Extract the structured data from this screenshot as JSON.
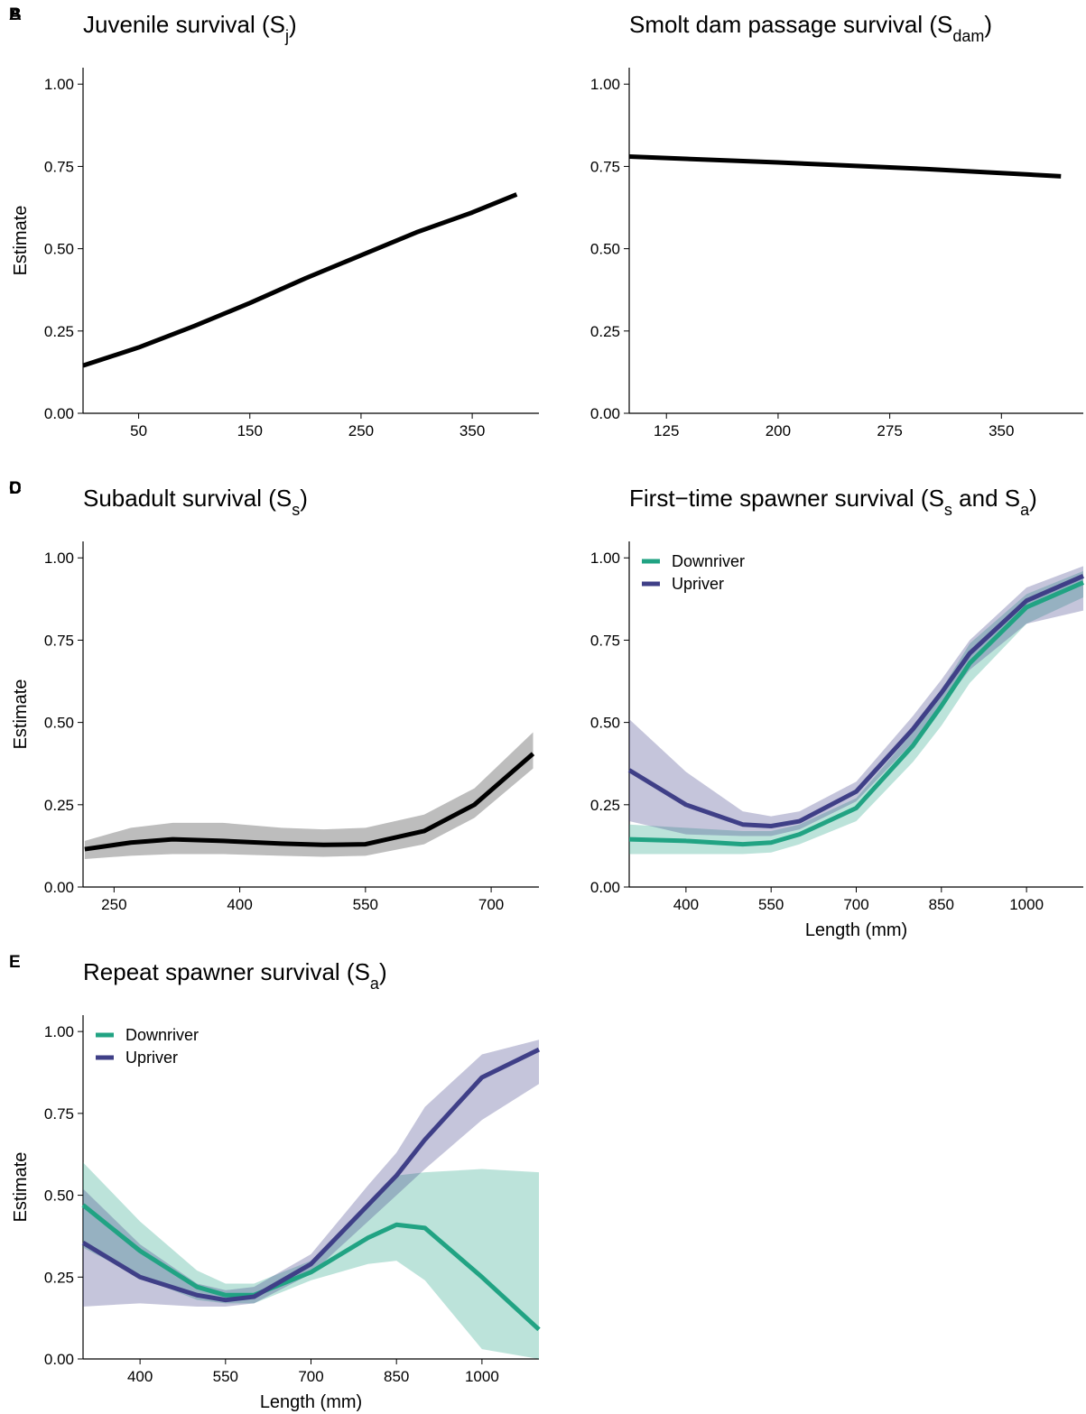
{
  "chart_data": [
    {
      "type": "line",
      "panel": "A",
      "title": [
        {
          "text": "Juvenile survival ("
        },
        {
          "text": "S"
        },
        {
          "text": "j",
          "sub": true
        },
        {
          "text": ")"
        }
      ],
      "ylabel": "Estimate",
      "xlim": [
        0,
        410
      ],
      "xticks": [
        50,
        150,
        250,
        350
      ],
      "ylim": [
        0,
        1.05
      ],
      "yticks": [
        {
          "value": 0,
          "label": "0.00"
        },
        {
          "value": 0.25,
          "label": "0.25"
        },
        {
          "value": 0.5,
          "label": "0.50"
        },
        {
          "value": 0.75,
          "label": "0.75"
        },
        {
          "value": 1,
          "label": "1.00"
        }
      ],
      "x": [
        0,
        50,
        100,
        150,
        200,
        250,
        300,
        350,
        390
      ],
      "series": [
        {
          "color": "#000000",
          "values": [
            0.145,
            0.2,
            0.265,
            0.335,
            0.41,
            0.48,
            0.55,
            0.61,
            0.665
          ]
        }
      ]
    },
    {
      "type": "line",
      "panel": "B",
      "title": [
        {
          "text": "Smolt dam passage survival ("
        },
        {
          "text": "S"
        },
        {
          "text": "dam",
          "sub": true
        },
        {
          "text": ")"
        }
      ],
      "xlim": [
        100,
        405
      ],
      "xticks": [
        125,
        200,
        275,
        350
      ],
      "ylim": [
        0,
        1.05
      ],
      "yticks": [
        {
          "value": 0,
          "label": "0.00"
        },
        {
          "value": 0.25,
          "label": "0.25"
        },
        {
          "value": 0.5,
          "label": "0.50"
        },
        {
          "value": 0.75,
          "label": "0.75"
        },
        {
          "value": 1,
          "label": "1.00"
        }
      ],
      "x": [
        100,
        200,
        300,
        390
      ],
      "series": [
        {
          "color": "#000000",
          "values": [
            0.78,
            0.762,
            0.742,
            0.72
          ]
        }
      ]
    },
    {
      "type": "line",
      "panel": "C",
      "title": [
        {
          "text": "Subadult survival ("
        },
        {
          "text": "S"
        },
        {
          "text": "s",
          "sub": true
        },
        {
          "text": ")"
        }
      ],
      "ylabel": "Estimate",
      "xlim": [
        213,
        757
      ],
      "xticks": [
        250,
        400,
        550,
        700
      ],
      "ylim": [
        0,
        1.05
      ],
      "yticks": [
        {
          "value": 0,
          "label": "0.00"
        },
        {
          "value": 0.25,
          "label": "0.25"
        },
        {
          "value": 0.5,
          "label": "0.50"
        },
        {
          "value": 0.75,
          "label": "0.75"
        },
        {
          "value": 1,
          "label": "1.00"
        }
      ],
      "x": [
        215,
        270,
        320,
        380,
        450,
        500,
        550,
        620,
        680,
        750
      ],
      "series": [
        {
          "color": "#000000",
          "band_color": "#bdbdbd",
          "values": [
            0.115,
            0.135,
            0.145,
            0.14,
            0.132,
            0.128,
            0.13,
            0.17,
            0.25,
            0.405
          ],
          "lower": [
            0.085,
            0.095,
            0.1,
            0.1,
            0.095,
            0.092,
            0.095,
            0.13,
            0.21,
            0.36
          ],
          "upper": [
            0.14,
            0.18,
            0.195,
            0.195,
            0.18,
            0.175,
            0.18,
            0.22,
            0.3,
            0.47
          ]
        }
      ]
    },
    {
      "type": "line",
      "panel": "D",
      "title": [
        {
          "text": "First−time spawner survival ("
        },
        {
          "text": "S"
        },
        {
          "text": "s",
          "sub": true
        },
        {
          "text": " and "
        },
        {
          "text": "S"
        },
        {
          "text": "a",
          "sub": true
        },
        {
          "text": ")"
        }
      ],
      "xlabel": "Length (mm)",
      "legend": "upper left",
      "xlim": [
        300,
        1100
      ],
      "xticks": [
        400,
        550,
        700,
        850,
        1000
      ],
      "ylim": [
        0,
        1.05
      ],
      "yticks": [
        {
          "value": 0,
          "label": "0.00"
        },
        {
          "value": 0.25,
          "label": "0.25"
        },
        {
          "value": 0.5,
          "label": "0.50"
        },
        {
          "value": 0.75,
          "label": "0.75"
        },
        {
          "value": 1,
          "label": "1.00"
        }
      ],
      "x": [
        300,
        400,
        500,
        550,
        600,
        700,
        800,
        850,
        900,
        1000,
        1100
      ],
      "series": [
        {
          "name": "Downriver",
          "color": "#21a383",
          "values": [
            0.145,
            0.14,
            0.13,
            0.135,
            0.16,
            0.24,
            0.43,
            0.55,
            0.68,
            0.85,
            0.925
          ],
          "lower": [
            0.1,
            0.1,
            0.1,
            0.105,
            0.13,
            0.2,
            0.38,
            0.49,
            0.62,
            0.8,
            0.88
          ],
          "upper": [
            0.19,
            0.18,
            0.17,
            0.17,
            0.19,
            0.27,
            0.47,
            0.6,
            0.74,
            0.89,
            0.96
          ]
        },
        {
          "name": "Upriver",
          "color": "#3f3f87",
          "values": [
            0.355,
            0.25,
            0.19,
            0.185,
            0.2,
            0.29,
            0.48,
            0.59,
            0.71,
            0.87,
            0.945
          ],
          "lower": [
            0.2,
            0.16,
            0.155,
            0.155,
            0.175,
            0.26,
            0.44,
            0.55,
            0.66,
            0.8,
            0.84
          ],
          "upper": [
            0.51,
            0.35,
            0.23,
            0.215,
            0.23,
            0.32,
            0.52,
            0.63,
            0.75,
            0.91,
            0.975
          ]
        }
      ]
    },
    {
      "type": "line",
      "panel": "E",
      "title": [
        {
          "text": "Repeat spawner survival ("
        },
        {
          "text": "S"
        },
        {
          "text": "a",
          "sub": true
        },
        {
          "text": ")"
        }
      ],
      "ylabel": "Estimate",
      "xlabel": "Length (mm)",
      "legend": "upper left",
      "xlim": [
        300,
        1100
      ],
      "xticks": [
        400,
        550,
        700,
        850,
        1000
      ],
      "ylim": [
        0,
        1.05
      ],
      "yticks": [
        {
          "value": 0,
          "label": "0.00"
        },
        {
          "value": 0.25,
          "label": "0.25"
        },
        {
          "value": 0.5,
          "label": "0.50"
        },
        {
          "value": 0.75,
          "label": "0.75"
        },
        {
          "value": 1,
          "label": "1.00"
        }
      ],
      "x": [
        300,
        400,
        500,
        550,
        600,
        700,
        800,
        850,
        900,
        1000,
        1100
      ],
      "series": [
        {
          "name": "Downriver",
          "color": "#21a383",
          "values": [
            0.47,
            0.33,
            0.22,
            0.195,
            0.195,
            0.265,
            0.37,
            0.41,
            0.4,
            0.25,
            0.09
          ],
          "lower": [
            0.34,
            0.25,
            0.18,
            0.17,
            0.17,
            0.24,
            0.29,
            0.3,
            0.24,
            0.03,
            0
          ],
          "upper": [
            0.6,
            0.42,
            0.27,
            0.23,
            0.23,
            0.3,
            0.47,
            0.56,
            0.57,
            0.58,
            0.57
          ]
        },
        {
          "name": "Upriver",
          "color": "#3f3f87",
          "values": [
            0.355,
            0.25,
            0.195,
            0.18,
            0.19,
            0.29,
            0.47,
            0.56,
            0.67,
            0.86,
            0.945
          ],
          "lower": [
            0.16,
            0.17,
            0.16,
            0.16,
            0.17,
            0.26,
            0.42,
            0.5,
            0.58,
            0.73,
            0.84
          ],
          "upper": [
            0.52,
            0.35,
            0.23,
            0.21,
            0.22,
            0.32,
            0.53,
            0.63,
            0.77,
            0.93,
            0.975
          ]
        }
      ]
    }
  ]
}
